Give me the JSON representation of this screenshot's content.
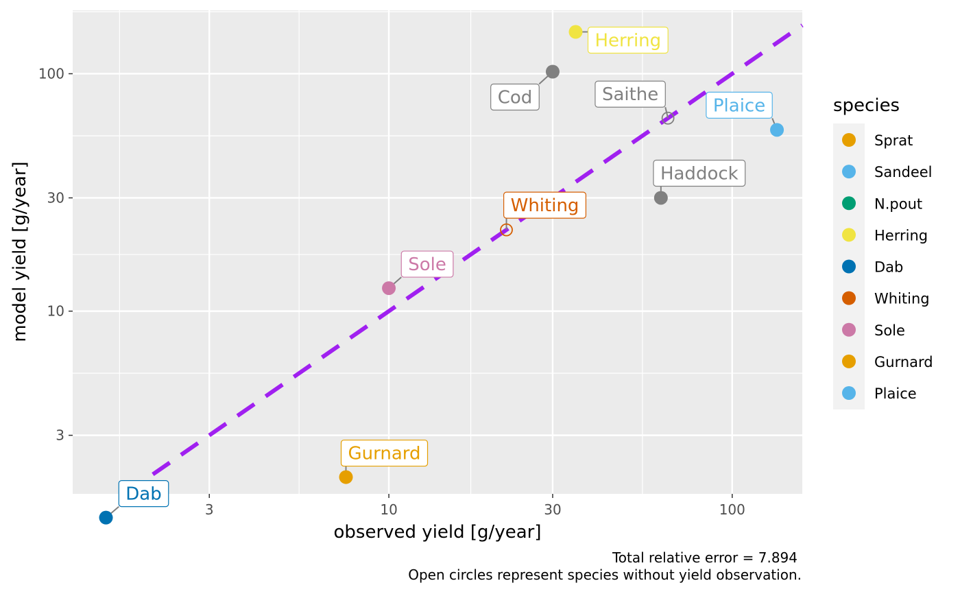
{
  "chart_data": {
    "type": "scatter",
    "xlabel": "observed yield [g/year]",
    "ylabel": "model yield [g/year]",
    "x_scale": "log",
    "y_scale": "log",
    "xlim": [
      1.2,
      160
    ],
    "ylim": [
      1.7,
      185
    ],
    "x_ticks": [
      3,
      10,
      30,
      100
    ],
    "y_ticks": [
      3,
      10,
      30,
      100
    ],
    "x_tick_labels": [
      "3",
      "10",
      "30",
      "100"
    ],
    "y_tick_labels": [
      "3",
      "10",
      "30",
      "100"
    ],
    "reference_line": {
      "type": "identity",
      "color": "#a020f0",
      "style": "dashed"
    },
    "panel_background": "#ebebeb",
    "grid": true,
    "legend": {
      "title": "species",
      "placement": "right",
      "entries": [
        {
          "name": "Sprat",
          "color": "#e69f00"
        },
        {
          "name": "Sandeel",
          "color": "#56b4e9"
        },
        {
          "name": "N.pout",
          "color": "#009e73"
        },
        {
          "name": "Herring",
          "color": "#f0e442"
        },
        {
          "name": "Dab",
          "color": "#0072b2"
        },
        {
          "name": "Whiting",
          "color": "#d55e00"
        },
        {
          "name": "Sole",
          "color": "#cc79a7"
        },
        {
          "name": "Gurnard",
          "color": "#e69f00"
        },
        {
          "name": "Plaice",
          "color": "#56b4e9"
        }
      ]
    },
    "points": [
      {
        "species": "Herring",
        "label": "Herring",
        "x": 35,
        "y": 150,
        "color": "#f0e442",
        "open": false
      },
      {
        "species": "Cod",
        "label": "Cod",
        "x": 30,
        "y": 102,
        "color": "#808080",
        "open": false
      },
      {
        "species": "Saithe",
        "label": "Saithe",
        "x": 65,
        "y": 65,
        "color": "#808080",
        "open": true
      },
      {
        "species": "Plaice",
        "label": "Plaice",
        "x": 135,
        "y": 58,
        "color": "#56b4e9",
        "open": false
      },
      {
        "species": "Haddock",
        "label": "Haddock",
        "x": 62,
        "y": 30,
        "color": "#808080",
        "open": false
      },
      {
        "species": "Whiting",
        "label": "Whiting",
        "x": 22,
        "y": 22,
        "color": "#d55e00",
        "open": true
      },
      {
        "species": "Sole",
        "label": "Sole",
        "x": 10,
        "y": 12.5,
        "color": "#cc79a7",
        "open": false
      },
      {
        "species": "Gurnard",
        "label": "Gurnard",
        "x": 7.5,
        "y": 2.0,
        "color": "#e69f00",
        "open": false
      },
      {
        "species": "Dab",
        "label": "Dab",
        "x": 1.5,
        "y": 1.35,
        "color": "#0072b2",
        "open": false
      }
    ],
    "caption": [
      "Total relative error = 7.894",
      "Open circles represent species without yield observation."
    ]
  }
}
